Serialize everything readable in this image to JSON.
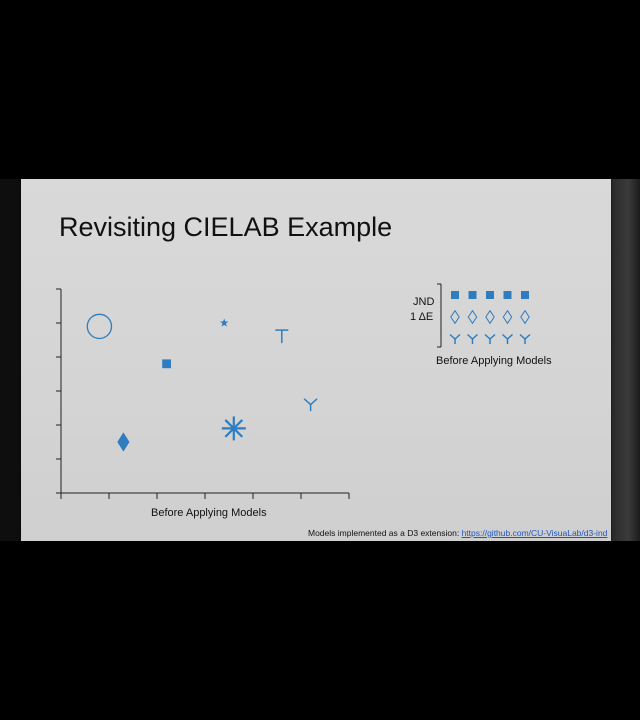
{
  "slide": {
    "title": "Revisiting CIELAB Example",
    "chart_caption": "Before Applying Models",
    "jnd_label": "JND",
    "delta_label": "1 ΔE",
    "jnd_caption": "Before Applying Models",
    "footer_text": "Models implemented as a D3 extension: ",
    "footer_link": "https://github.com/CU-VisuaLab/d3-ind"
  },
  "colors": {
    "mark": "#2f7dc0",
    "axis": "#222222",
    "slide_bg": "#d6d6d6",
    "link": "#1d57c2"
  },
  "chart_data": [
    {
      "type": "scatter",
      "title": "",
      "xlabel": "Before Applying Models",
      "ylabel": "",
      "xlim": [
        0,
        6
      ],
      "ylim": [
        0,
        6
      ],
      "grid": false,
      "points": [
        {
          "shape": "circle",
          "x": 0.8,
          "y": 4.9
        },
        {
          "shape": "star",
          "x": 3.4,
          "y": 5.0
        },
        {
          "shape": "t-shape",
          "x": 4.6,
          "y": 4.6
        },
        {
          "shape": "square",
          "x": 2.2,
          "y": 3.8
        },
        {
          "shape": "y-shape",
          "x": 5.2,
          "y": 2.6
        },
        {
          "shape": "asterisk",
          "x": 3.6,
          "y": 1.9
        },
        {
          "shape": "diamond",
          "x": 1.3,
          "y": 1.5
        }
      ]
    },
    {
      "type": "scatter",
      "title": "",
      "xlabel": "Before Applying Models",
      "ylabel": "",
      "rows": [
        {
          "shape": "square",
          "count": 5
        },
        {
          "shape": "diamond-outline",
          "count": 5
        },
        {
          "shape": "y-shape",
          "count": 5
        }
      ]
    }
  ]
}
